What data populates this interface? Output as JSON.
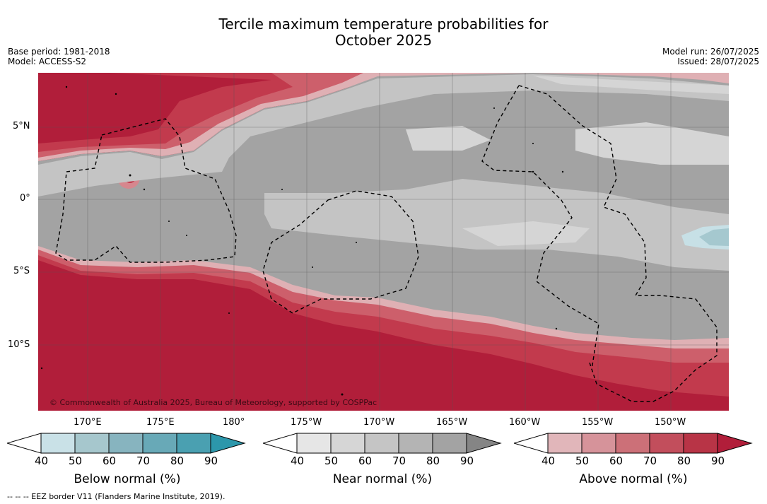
{
  "title": {
    "line1": "Tercile maximum temperature probabilities for",
    "line2": "October 2025"
  },
  "meta": {
    "base_period": "Base period: 1981-2018",
    "model": "Model: ACCESS-S2",
    "model_run": "Model run: 26/07/2025",
    "issued": "Issued: 28/07/2025"
  },
  "map": {
    "lat_labels": [
      "5°N",
      "0°",
      "5°S",
      "10°S"
    ],
    "lon_labels": [
      "170°E",
      "175°E",
      "180°",
      "175°W",
      "170°W",
      "165°W",
      "160°W",
      "155°W",
      "150°W"
    ],
    "copyright": "© Commonwealth of Australia 2025, Bureau of Meteorology, supported by COSPPac",
    "colors": {
      "above_90": "#b11e3a",
      "above_80": "#c23a4d",
      "above_70": "#cd5f6b",
      "above_60": "#d6878e",
      "above_50": "#dfb0b4",
      "near_40": "#e6e6e6",
      "near_50": "#d5d5d5",
      "near_60": "#c4c4c4",
      "near_70": "#b4b4b4",
      "near_80": "#a3a3a3",
      "below_50": "#c7e0e6",
      "below_60": "#a5c8cf"
    }
  },
  "colorbars": [
    {
      "title": "Below normal (%)",
      "ticks": [
        "40",
        "50",
        "60",
        "70",
        "80",
        "90"
      ],
      "colors": [
        "#ffffff",
        "#c9e1e7",
        "#a6c7cd",
        "#87b4bf",
        "#68a9b7",
        "#4aa0b1",
        "#2c97ab"
      ]
    },
    {
      "title": "Near normal (%)",
      "ticks": [
        "40",
        "50",
        "60",
        "70",
        "80",
        "90"
      ],
      "colors": [
        "#ffffff",
        "#e6e6e6",
        "#d6d6d6",
        "#c5c5c5",
        "#b4b4b4",
        "#a3a3a3",
        "#858585"
      ]
    },
    {
      "title": "Above normal (%)",
      "ticks": [
        "40",
        "50",
        "60",
        "70",
        "80",
        "90"
      ],
      "colors": [
        "#ffffff",
        "#e1b6ba",
        "#d6939a",
        "#cc7078",
        "#c24e5c",
        "#b83446",
        "#b11e3a"
      ]
    }
  ],
  "footer": "--  --  -- EEZ border V11 (Flanders Marine Institute, 2019)."
}
